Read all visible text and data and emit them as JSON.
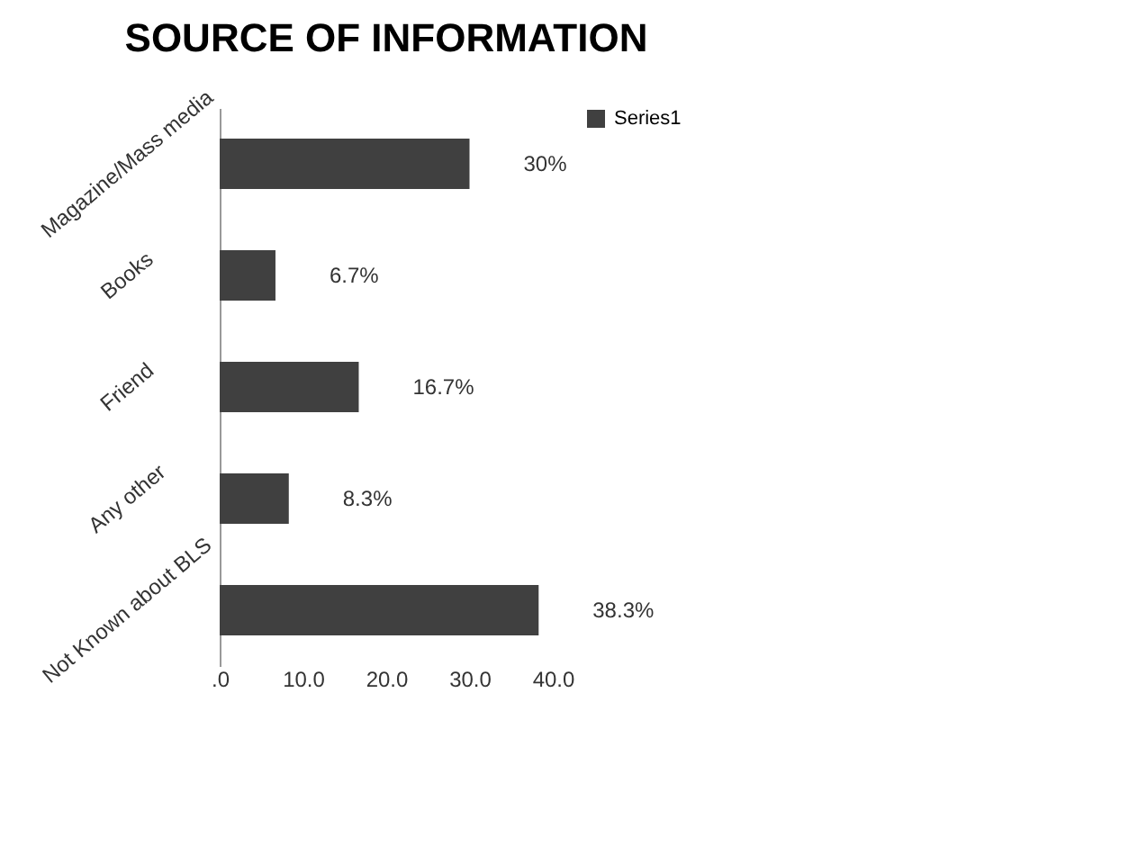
{
  "chart_data": {
    "type": "bar",
    "title": "SOURCE OF INFORMATION",
    "orientation": "horizontal",
    "categories": [
      "Magazine/Mass media",
      "Books",
      "Friend",
      "Any other",
      "Not Known about BLS"
    ],
    "series": [
      {
        "name": "Series1",
        "color": "#404040",
        "values": [
          30,
          6.7,
          16.7,
          8.3,
          38.3
        ],
        "value_labels": [
          "30%",
          "6.7%",
          "16.7%",
          "8.3%",
          "38.3%"
        ]
      }
    ],
    "xlim": [
      0,
      40
    ],
    "xticks": [
      {
        "value": 0,
        "label": ".0"
      },
      {
        "value": 10,
        "label": "10.0"
      },
      {
        "value": 20,
        "label": "20.0"
      },
      {
        "value": 30,
        "label": "30.0"
      },
      {
        "value": 40,
        "label": "40.0"
      }
    ],
    "grid": false,
    "legend": "right"
  }
}
